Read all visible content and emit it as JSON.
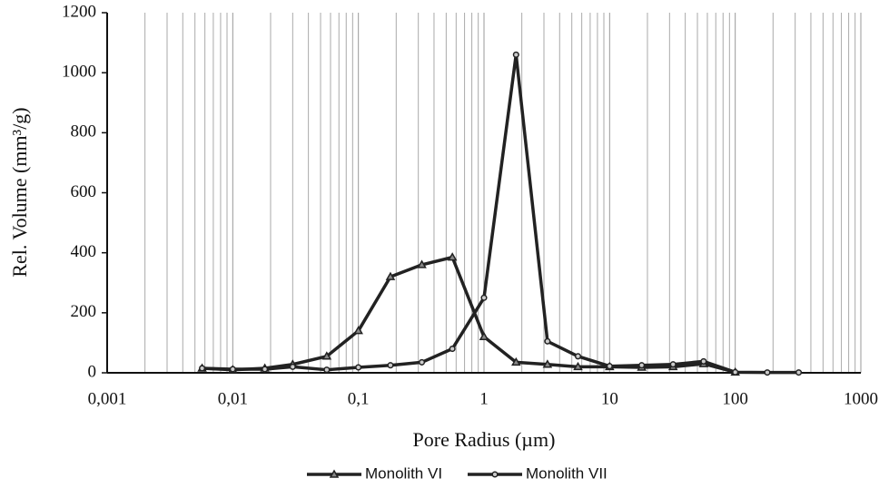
{
  "chart_data": {
    "type": "line",
    "xlabel": "Pore Radius (µm)",
    "ylabel": "Rel. Volume (mm³/g)",
    "xscale": "log",
    "xlim": [
      0.001,
      1000
    ],
    "xticks": [
      {
        "value": 0.001,
        "label": "0,001"
      },
      {
        "value": 0.01,
        "label": "0,01"
      },
      {
        "value": 0.1,
        "label": "0,1"
      },
      1,
      10,
      100,
      1000
    ],
    "xminorticks": [
      0.002,
      0.003,
      0.004,
      0.005,
      0.006,
      0.007,
      0.008,
      0.009,
      0.02,
      0.03,
      0.04,
      0.05,
      0.06,
      0.07,
      0.08,
      0.09,
      0.2,
      0.3,
      0.4,
      0.5,
      0.6,
      0.7,
      0.8,
      0.9,
      2,
      3,
      4,
      5,
      6,
      7,
      8,
      9,
      20,
      30,
      40,
      50,
      60,
      70,
      80,
      90,
      200,
      300,
      400,
      500,
      600,
      700,
      800,
      900
    ],
    "ylim": [
      0,
      1200
    ],
    "yticks": [
      0,
      200,
      400,
      600,
      800,
      1000,
      1200
    ],
    "grid": "x",
    "legend": "bottom",
    "series": [
      {
        "name": "Monolith VI",
        "color": "#222222",
        "marker": "triangle",
        "x": [
          0.0057,
          0.01,
          0.018,
          0.03,
          0.056,
          0.1,
          0.18,
          0.32,
          0.56,
          1,
          1.8,
          3.2,
          5.6,
          10,
          18,
          32,
          56,
          100
        ],
        "values": [
          15,
          10,
          15,
          28,
          55,
          140,
          320,
          360,
          385,
          120,
          35,
          28,
          20,
          20,
          18,
          20,
          30,
          2
        ]
      },
      {
        "name": "Monolith VII",
        "color": "#222222",
        "marker": "circle",
        "x": [
          0.0057,
          0.01,
          0.018,
          0.03,
          0.056,
          0.1,
          0.18,
          0.32,
          0.56,
          1,
          1.8,
          3.2,
          5.6,
          10,
          18,
          32,
          56,
          100,
          180,
          320
        ],
        "values": [
          15,
          12,
          12,
          20,
          10,
          18,
          25,
          35,
          80,
          250,
          1060,
          105,
          55,
          22,
          25,
          28,
          38,
          2,
          1,
          1
        ]
      }
    ]
  }
}
